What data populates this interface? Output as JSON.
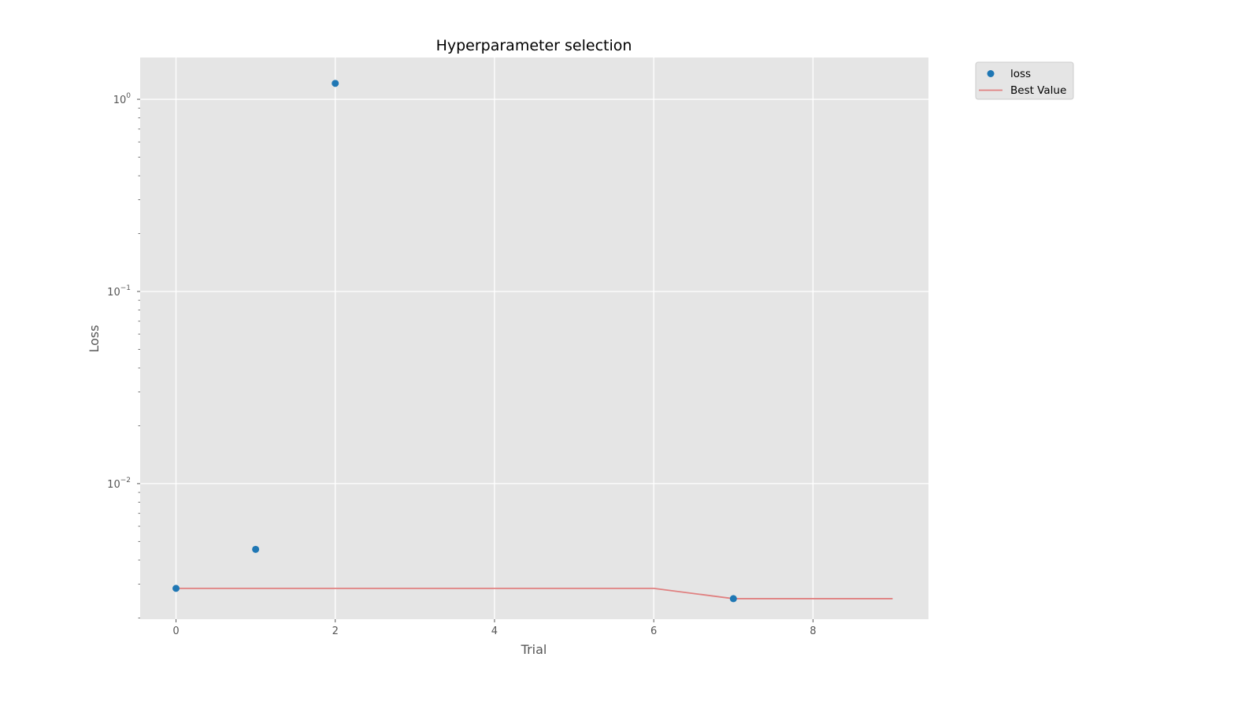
{
  "chart_data": {
    "type": "scatter",
    "title": "Hyperparameter selection",
    "xlabel": "Trial",
    "ylabel": "Loss",
    "xlim": [
      -0.45,
      9.45
    ],
    "ylim": [
      0.00197,
      1.65
    ],
    "yscale": "log",
    "grid": true,
    "legend_position": "outside-top-right",
    "x_ticks": [
      0,
      2,
      4,
      6,
      8
    ],
    "y_ticks": [
      {
        "value": 0.01,
        "base": "10",
        "exp": "−2"
      },
      {
        "value": 0.1,
        "base": "10",
        "exp": "−1"
      },
      {
        "value": 1,
        "base": "10",
        "exp": "0"
      }
    ],
    "series": [
      {
        "name": "loss",
        "kind": "scatter",
        "color": "#1f77b4",
        "points": [
          {
            "x": 0,
            "y": 0.00285
          },
          {
            "x": 1,
            "y": 0.00455
          },
          {
            "x": 2,
            "y": 1.21
          },
          {
            "x": 7,
            "y": 0.00252
          }
        ]
      },
      {
        "name": "Best Value",
        "kind": "line",
        "color": "#e08080",
        "points": [
          {
            "x": 0,
            "y": 0.00285
          },
          {
            "x": 1,
            "y": 0.00285
          },
          {
            "x": 2,
            "y": 0.00285
          },
          {
            "x": 3,
            "y": 0.00285
          },
          {
            "x": 4,
            "y": 0.00285
          },
          {
            "x": 5,
            "y": 0.00285
          },
          {
            "x": 6,
            "y": 0.00285
          },
          {
            "x": 7,
            "y": 0.00252
          },
          {
            "x": 8,
            "y": 0.00252
          },
          {
            "x": 9,
            "y": 0.00252
          }
        ]
      }
    ]
  },
  "colors": {
    "plot_background": "#e5e5e5",
    "grid": "#ffffff",
    "legend_background": "#e5e5e5"
  }
}
